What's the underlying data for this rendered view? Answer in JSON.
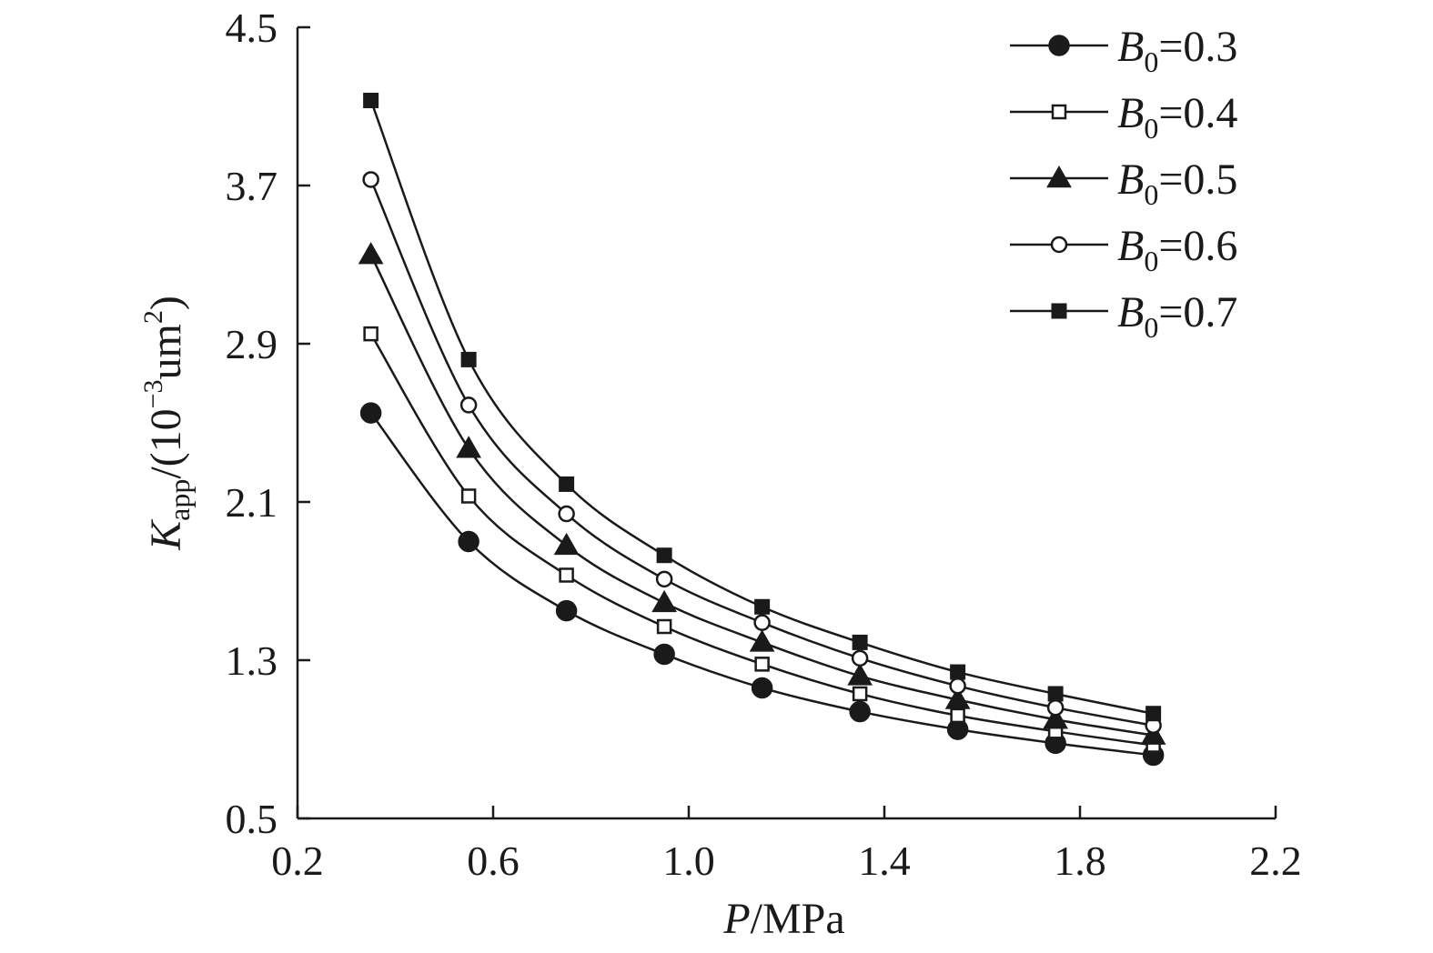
{
  "chart_data": {
    "type": "line",
    "xlabel": {
      "var": "P",
      "unit": "/MPa"
    },
    "ylabel": {
      "var": "K",
      "sub": "app",
      "mid": "/(10",
      "sup": "−3",
      "rest": "um",
      "sup2": "2",
      "end": ")"
    },
    "xlim": [
      0.2,
      2.2
    ],
    "ylim": [
      0.5,
      4.5
    ],
    "xticks": [
      "0.2",
      "0.6",
      "1.0",
      "1.4",
      "1.8",
      "2.2"
    ],
    "yticks": [
      "0.5",
      "1.3",
      "2.1",
      "2.9",
      "3.7",
      "4.5"
    ],
    "grid": false,
    "legend_position": "top-right",
    "x": [
      0.35,
      0.55,
      0.75,
      0.95,
      1.15,
      1.35,
      1.55,
      1.75,
      1.95
    ],
    "series": [
      {
        "name": "B0=0.3",
        "label_var": "B",
        "label_sub": "0",
        "label_val": "=0.3",
        "marker": "filled-circle",
        "values": [
          2.55,
          1.9,
          1.55,
          1.33,
          1.16,
          1.04,
          0.95,
          0.88,
          0.82
        ]
      },
      {
        "name": "B0=0.4",
        "label_var": "B",
        "label_sub": "0",
        "label_val": "=0.4",
        "marker": "open-square",
        "values": [
          2.95,
          2.13,
          1.73,
          1.47,
          1.28,
          1.13,
          1.02,
          0.94,
          0.87
        ]
      },
      {
        "name": "B0=0.5",
        "label_var": "B",
        "label_sub": "0",
        "label_val": "=0.5",
        "marker": "filled-triangle",
        "values": [
          3.35,
          2.37,
          1.88,
          1.59,
          1.39,
          1.22,
          1.1,
          1.0,
          0.92
        ]
      },
      {
        "name": "B0=0.6",
        "label_var": "B",
        "label_sub": "0",
        "label_val": "=0.6",
        "marker": "open-circle",
        "values": [
          3.73,
          2.59,
          2.04,
          1.71,
          1.49,
          1.31,
          1.17,
          1.06,
          0.97
        ]
      },
      {
        "name": "B0=0.7",
        "label_var": "B",
        "label_sub": "0",
        "label_val": "=0.7",
        "marker": "filled-square",
        "values": [
          4.13,
          2.82,
          2.19,
          1.83,
          1.57,
          1.39,
          1.24,
          1.13,
          1.03
        ]
      }
    ],
    "colors": {
      "line": "#1a1a1a",
      "fill": "#1a1a1a",
      "open_fill": "#ffffff"
    }
  }
}
